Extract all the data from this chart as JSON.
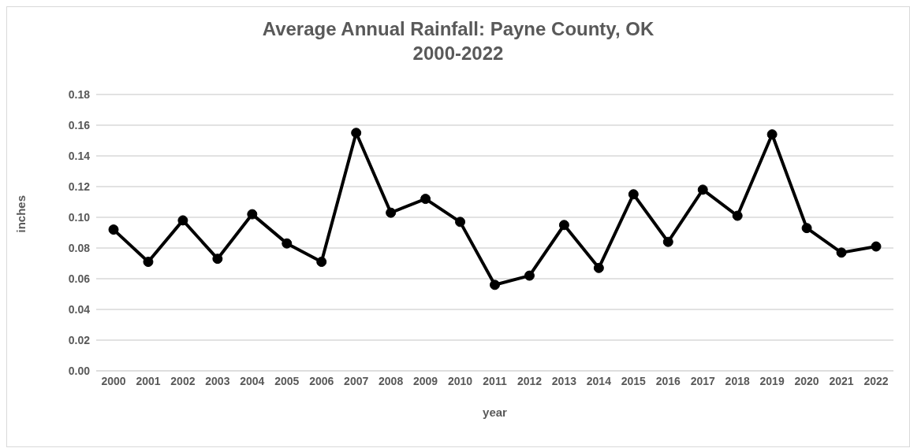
{
  "chart_data": {
    "type": "line",
    "title": "Average Annual Rainfall: Payne County, OK\n2000-2022",
    "xlabel": "year",
    "ylabel": "inches",
    "categories": [
      "2000",
      "2001",
      "2002",
      "2003",
      "2004",
      "2005",
      "2006",
      "2007",
      "2008",
      "2009",
      "2010",
      "2011",
      "2012",
      "2013",
      "2014",
      "2015",
      "2016",
      "2017",
      "2018",
      "2019",
      "2020",
      "2021",
      "2022"
    ],
    "series": [
      {
        "color": "#000000",
        "values": [
          0.092,
          0.071,
          0.098,
          0.073,
          0.102,
          0.083,
          0.071,
          0.155,
          0.103,
          0.112,
          0.097,
          0.056,
          0.062,
          0.095,
          0.067,
          0.115,
          0.084,
          0.118,
          0.101,
          0.154,
          0.093,
          0.077,
          0.081
        ]
      }
    ],
    "ylim": [
      0,
      0.18
    ],
    "yticks": [
      {
        "value": 0,
        "label": "0.00"
      },
      {
        "value": 0.02,
        "label": "0.02"
      },
      {
        "value": 0.04,
        "label": "0.04"
      },
      {
        "value": 0.06,
        "label": "0.06"
      },
      {
        "value": 0.08,
        "label": "0.08"
      },
      {
        "value": 0.1,
        "label": "0.10"
      },
      {
        "value": 0.12,
        "label": "0.12"
      },
      {
        "value": 0.14,
        "label": "0.14"
      },
      {
        "value": 0.16,
        "label": "0.16"
      },
      {
        "value": 0.18,
        "label": "0.18"
      }
    ],
    "grid": "y",
    "marker": "circle",
    "line_style": "solid",
    "legend": false
  }
}
